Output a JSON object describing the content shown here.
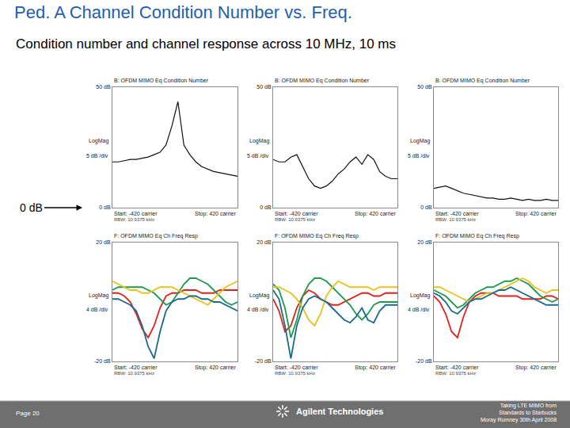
{
  "title": "Ped. A Channel Condition Number vs. Freq.",
  "subtitle": "Condition number and channel response across 10 MHz, 10 ms",
  "marker_label": "0 dB",
  "footer": {
    "page": "Page 20",
    "company": "Agilent Technologies",
    "note": [
      "Taking LTE MIMO from",
      "Standards to Starbucks",
      "Moray Rumney 30th April 2008"
    ]
  },
  "chart_data": [
    {
      "type": "line",
      "title": "B: OFDM MIMO Eq Condition Number",
      "x": [
        -420,
        -380,
        -340,
        -300,
        -260,
        -220,
        -180,
        -140,
        -100,
        -60,
        -20,
        20,
        60,
        100,
        140,
        180,
        220,
        260,
        300,
        340,
        380,
        420
      ],
      "xlim": [
        -420,
        420
      ],
      "ylim": [
        0,
        50
      ],
      "yticks": [
        {
          "value": 50,
          "label": "50 dB"
        },
        {
          "value": 0,
          "label": "0 dB"
        }
      ],
      "tick_labels": "y",
      "grid": false,
      "scale_label": "LogMag",
      "div_label": "5 dB /div",
      "start_label": "Start: -420 carrier",
      "stop_label": "Stop: 420 carrier",
      "rbw_label": "RBW: 10.9375 kHz",
      "series": [
        {
          "color": "#111111",
          "values": [
            19,
            19,
            19.5,
            20,
            20,
            20.5,
            21,
            22,
            23,
            26,
            34,
            44,
            26,
            22,
            19,
            17,
            16,
            15,
            14.5,
            14,
            13.5,
            13
          ]
        }
      ]
    },
    {
      "type": "line",
      "title": "B: OFDM MIMO Eq Condition Number",
      "x": [
        -420,
        -380,
        -340,
        -300,
        -260,
        -220,
        -180,
        -140,
        -100,
        -60,
        -20,
        20,
        60,
        100,
        140,
        180,
        220,
        260,
        300,
        340,
        380,
        420
      ],
      "xlim": [
        -420,
        420
      ],
      "ylim": [
        0,
        50
      ],
      "yticks": [
        {
          "value": 50,
          "label": "50 dB"
        },
        {
          "value": 0,
          "label": "0 dB"
        }
      ],
      "tick_labels": "y",
      "grid": false,
      "scale_label": "LogMag",
      "div_label": "5 dB /div",
      "start_label": "Start: -420 carrier",
      "stop_label": "Stop: 420 carrier",
      "rbw_label": "RBW: 10.9375 kHz",
      "series": [
        {
          "color": "#111111",
          "values": [
            20,
            19,
            19,
            21,
            22,
            17,
            12,
            9,
            8,
            9,
            11,
            14,
            16,
            19,
            21,
            18,
            22,
            20,
            15,
            13,
            12,
            12
          ]
        }
      ]
    },
    {
      "type": "line",
      "title": "B: OFDM MIMO Eq Condition Number",
      "x": [
        -420,
        -380,
        -340,
        -300,
        -260,
        -220,
        -180,
        -140,
        -100,
        -60,
        -20,
        20,
        60,
        100,
        140,
        180,
        220,
        260,
        300,
        340,
        380,
        420
      ],
      "xlim": [
        -420,
        420
      ],
      "ylim": [
        0,
        50
      ],
      "yticks": [
        {
          "value": 50,
          "label": "50 dB"
        },
        {
          "value": 0,
          "label": "0 dB"
        }
      ],
      "tick_labels": "y",
      "grid": false,
      "scale_label": "LogMag",
      "div_label": "5 dB /div",
      "start_label": "Start: -420 carrier",
      "stop_label": "Stop: 420 carrier",
      "rbw_label": "RBW: 10.9375 kHz",
      "series": [
        {
          "color": "#111111",
          "values": [
            8,
            8.5,
            9,
            8,
            7,
            6,
            5.5,
            5,
            4.5,
            4,
            4,
            3.5,
            3.5,
            4,
            3.5,
            3,
            3.5,
            3,
            3,
            3.5,
            3,
            3
          ]
        }
      ]
    },
    {
      "type": "line",
      "title": "F: OFDM MIMO Eq Ch Freq Resp",
      "x": [
        -420,
        -380,
        -340,
        -300,
        -260,
        -220,
        -180,
        -140,
        -100,
        -60,
        -20,
        20,
        60,
        100,
        140,
        180,
        220,
        260,
        300,
        340,
        380,
        420
      ],
      "xlim": [
        -420,
        420
      ],
      "ylim": [
        -20,
        20
      ],
      "yticks": [
        {
          "value": 20,
          "label": "20 dB"
        },
        {
          "value": -20,
          "label": "-20 dB"
        }
      ],
      "tick_labels": "y",
      "grid": false,
      "scale_label": "LogMag",
      "div_label": "4 dB /div",
      "start_label": "Start: -420 carrier",
      "stop_label": "Stop: 420 carrier",
      "rbw_label": "RBW: 10.9375 kHz",
      "series": [
        {
          "color": "#e0231c",
          "values": [
            3,
            3,
            2,
            0,
            -4,
            -9,
            -12,
            -8,
            -2,
            2,
            3,
            3,
            4,
            4,
            4,
            3,
            3,
            3,
            4,
            4,
            4,
            4
          ]
        },
        {
          "color": "#1e9a4e",
          "values": [
            4,
            5,
            5,
            5,
            5,
            5,
            4,
            3,
            1,
            -1,
            0,
            3,
            6,
            8,
            8,
            7,
            6,
            4,
            2,
            0,
            -1,
            0
          ]
        },
        {
          "color": "#e6c21e",
          "values": [
            7,
            6,
            5,
            4,
            4,
            3,
            3,
            4,
            5,
            5,
            5,
            4,
            3,
            2,
            1,
            0,
            -1,
            1,
            3,
            5,
            6,
            7
          ]
        },
        {
          "color": "#1b6c8c",
          "values": [
            1,
            1,
            0,
            -1,
            -3,
            -8,
            -15,
            -19,
            -10,
            -3,
            0,
            1,
            1,
            2,
            2,
            1,
            1,
            0,
            0,
            -1,
            -2,
            -3
          ]
        }
      ]
    },
    {
      "type": "line",
      "title": "F: OFDM MIMO Eq Ch Freq Resp",
      "x": [
        -420,
        -380,
        -340,
        -300,
        -260,
        -220,
        -180,
        -140,
        -100,
        -60,
        -20,
        20,
        60,
        100,
        140,
        180,
        220,
        260,
        300,
        340,
        380,
        420
      ],
      "xlim": [
        -420,
        420
      ],
      "ylim": [
        -20,
        20
      ],
      "yticks": [
        {
          "value": 20,
          "label": "20 dB"
        },
        {
          "value": -20,
          "label": "-20 dB"
        }
      ],
      "tick_labels": "y",
      "grid": false,
      "scale_label": "LogMag",
      "div_label": "4 dB /div",
      "start_label": "Start: -420 carrier",
      "stop_label": "Stop: 420 carrier",
      "rbw_label": "RBW: 10.9375 kHz",
      "series": [
        {
          "color": "#e0231c",
          "values": [
            1,
            -3,
            -10,
            -8,
            -2,
            2,
            4,
            3,
            1,
            0,
            -1,
            -1,
            0,
            1,
            2,
            3,
            3,
            2,
            2,
            3,
            3,
            3
          ]
        },
        {
          "color": "#1e9a4e",
          "values": [
            6,
            4,
            -2,
            -12,
            -6,
            2,
            6,
            8,
            8,
            7,
            5,
            3,
            1,
            -1,
            -4,
            -6,
            -4,
            -1,
            0,
            0,
            0,
            0
          ]
        },
        {
          "color": "#e6c21e",
          "values": [
            5,
            5,
            4,
            3,
            1,
            -2,
            -6,
            -8,
            -4,
            2,
            5,
            7,
            6,
            5,
            5,
            5,
            5,
            4,
            5,
            5,
            5,
            5
          ]
        },
        {
          "color": "#1b6c8c",
          "values": [
            4,
            1,
            -8,
            -19,
            -8,
            -2,
            1,
            2,
            1,
            0,
            -2,
            -4,
            -6,
            -7,
            -5,
            -2,
            -6,
            -7,
            -3,
            -1,
            -1,
            -1
          ]
        }
      ]
    },
    {
      "type": "line",
      "title": "F: OFDM MIMO Eq Ch Freq Resp",
      "x": [
        -420,
        -380,
        -340,
        -300,
        -260,
        -220,
        -180,
        -140,
        -100,
        -60,
        -20,
        20,
        60,
        100,
        140,
        180,
        220,
        260,
        300,
        340,
        380,
        420
      ],
      "xlim": [
        -420,
        420
      ],
      "ylim": [
        -20,
        20
      ],
      "yticks": [
        {
          "value": 20,
          "label": "20 dB"
        },
        {
          "value": -20,
          "label": "-20 dB"
        }
      ],
      "tick_labels": "y",
      "grid": false,
      "scale_label": "LogMag",
      "div_label": "4 dB /div",
      "start_label": "Start: -420 carrier",
      "stop_label": "Stop: 420 carrier",
      "rbw_label": "RBW: 10.9375 kHz",
      "series": [
        {
          "color": "#e0231c",
          "values": [
            2,
            0,
            -4,
            -10,
            -12,
            -5,
            0,
            2,
            3,
            3,
            3,
            2,
            2,
            2,
            2,
            1,
            1,
            1,
            1,
            2,
            2,
            1
          ]
        },
        {
          "color": "#1e9a4e",
          "values": [
            4,
            3,
            2,
            0,
            -2,
            -1,
            1,
            3,
            4,
            5,
            5,
            6,
            7,
            7,
            8,
            7,
            6,
            4,
            2,
            1,
            0,
            1
          ]
        },
        {
          "color": "#e6c21e",
          "values": [
            5,
            5,
            4,
            3,
            2,
            1,
            0,
            1,
            2,
            3,
            3,
            4,
            5,
            6,
            7,
            8,
            7,
            5,
            4,
            3,
            4,
            4
          ]
        },
        {
          "color": "#1b6c8c",
          "values": [
            3,
            2,
            0,
            -3,
            -4,
            -2,
            0,
            1,
            1,
            2,
            3,
            4,
            4,
            5,
            4,
            3,
            2,
            1,
            0,
            -1,
            -1,
            -1
          ]
        }
      ]
    }
  ]
}
